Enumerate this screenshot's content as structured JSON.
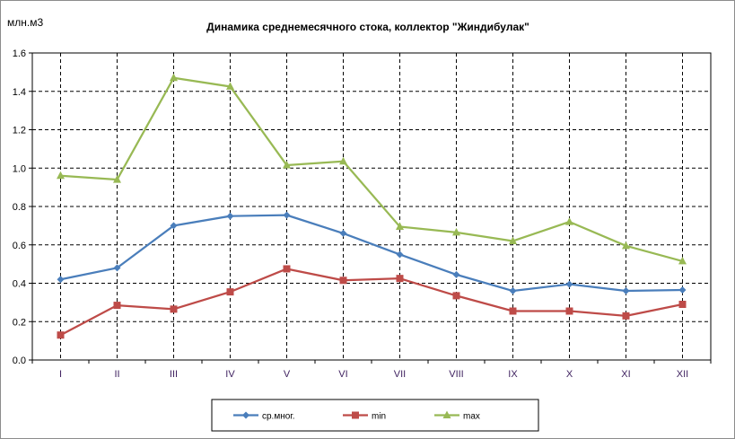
{
  "chart_data": {
    "type": "line",
    "title": "Динамика среднемесячного стока, коллектор \"Жиндибулак\"",
    "ylabel": "млн.м3",
    "xlabel": "",
    "ylim": [
      0,
      1.6
    ],
    "yticks": [
      "0.0",
      "0.2",
      "0.4",
      "0.6",
      "0.8",
      "1.0",
      "1.2",
      "1.4",
      "1.6"
    ],
    "categories": [
      "I",
      "II",
      "III",
      "IV",
      "V",
      "VI",
      "VII",
      "VIII",
      "IX",
      "X",
      "XI",
      "XII"
    ],
    "grid": true,
    "legend_position": "bottom",
    "series": [
      {
        "name": "ср.мног.",
        "color": "#4a7ebb",
        "marker": "diamond",
        "values": [
          0.42,
          0.48,
          0.7,
          0.75,
          0.755,
          0.66,
          0.55,
          0.445,
          0.36,
          0.395,
          0.36,
          0.365
        ]
      },
      {
        "name": "min",
        "color": "#be4b48",
        "marker": "square",
        "values": [
          0.13,
          0.285,
          0.265,
          0.355,
          0.475,
          0.415,
          0.425,
          0.335,
          0.255,
          0.255,
          0.23,
          0.29
        ]
      },
      {
        "name": "max",
        "color": "#98b954",
        "marker": "triangle",
        "values": [
          0.96,
          0.94,
          1.47,
          1.425,
          1.015,
          1.035,
          0.695,
          0.665,
          0.62,
          0.72,
          0.595,
          0.515
        ]
      }
    ]
  }
}
